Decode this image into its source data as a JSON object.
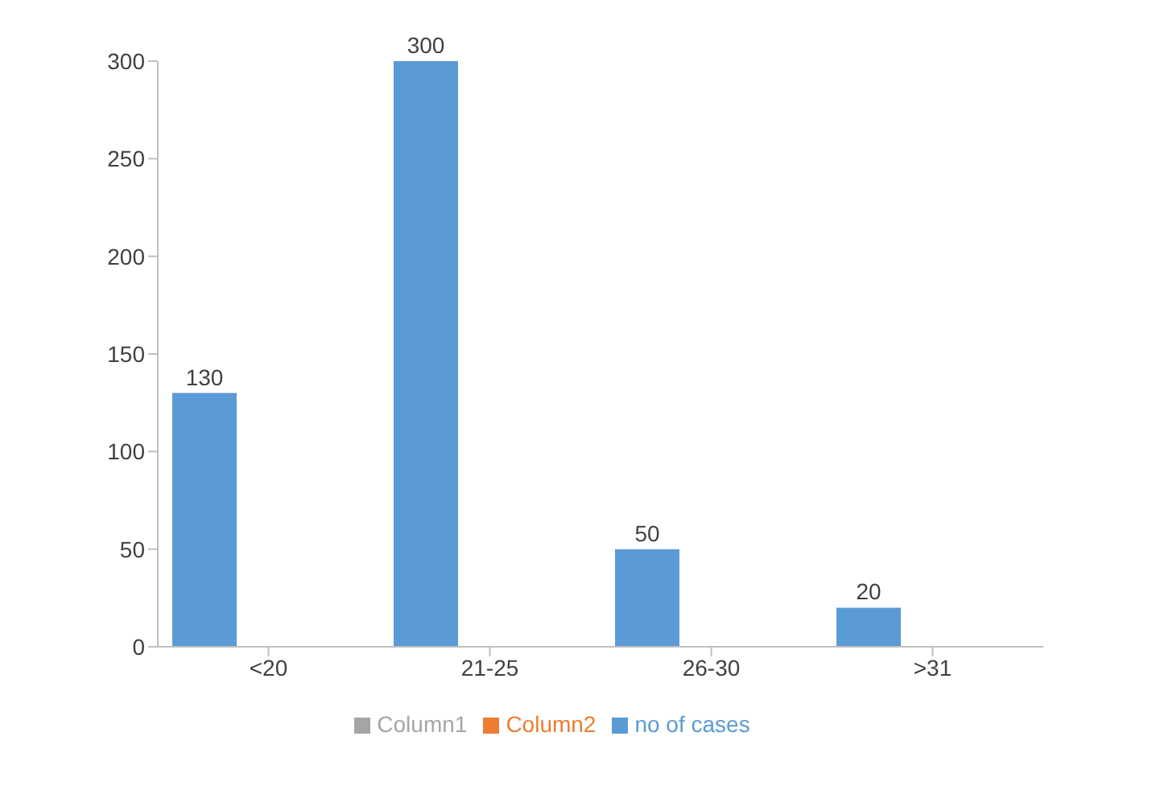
{
  "chart_data": {
    "type": "bar",
    "categories": [
      "<20",
      "21-25",
      "26-30",
      ">31"
    ],
    "series": [
      {
        "name": "no of cases",
        "color": "#5b9bd5",
        "values": [
          130,
          300,
          50,
          20
        ]
      },
      {
        "name": "Column2",
        "color": "#ed7d31",
        "values": [
          null,
          null,
          null,
          null
        ]
      },
      {
        "name": "Column1",
        "color": "#a5a5a5",
        "values": [
          null,
          null,
          null,
          null
        ]
      }
    ],
    "ylim": [
      0,
      300
    ],
    "yticks": [
      0,
      50,
      100,
      150,
      200,
      250,
      300
    ],
    "grid": false,
    "legend": "bottom",
    "data_labels": true
  }
}
